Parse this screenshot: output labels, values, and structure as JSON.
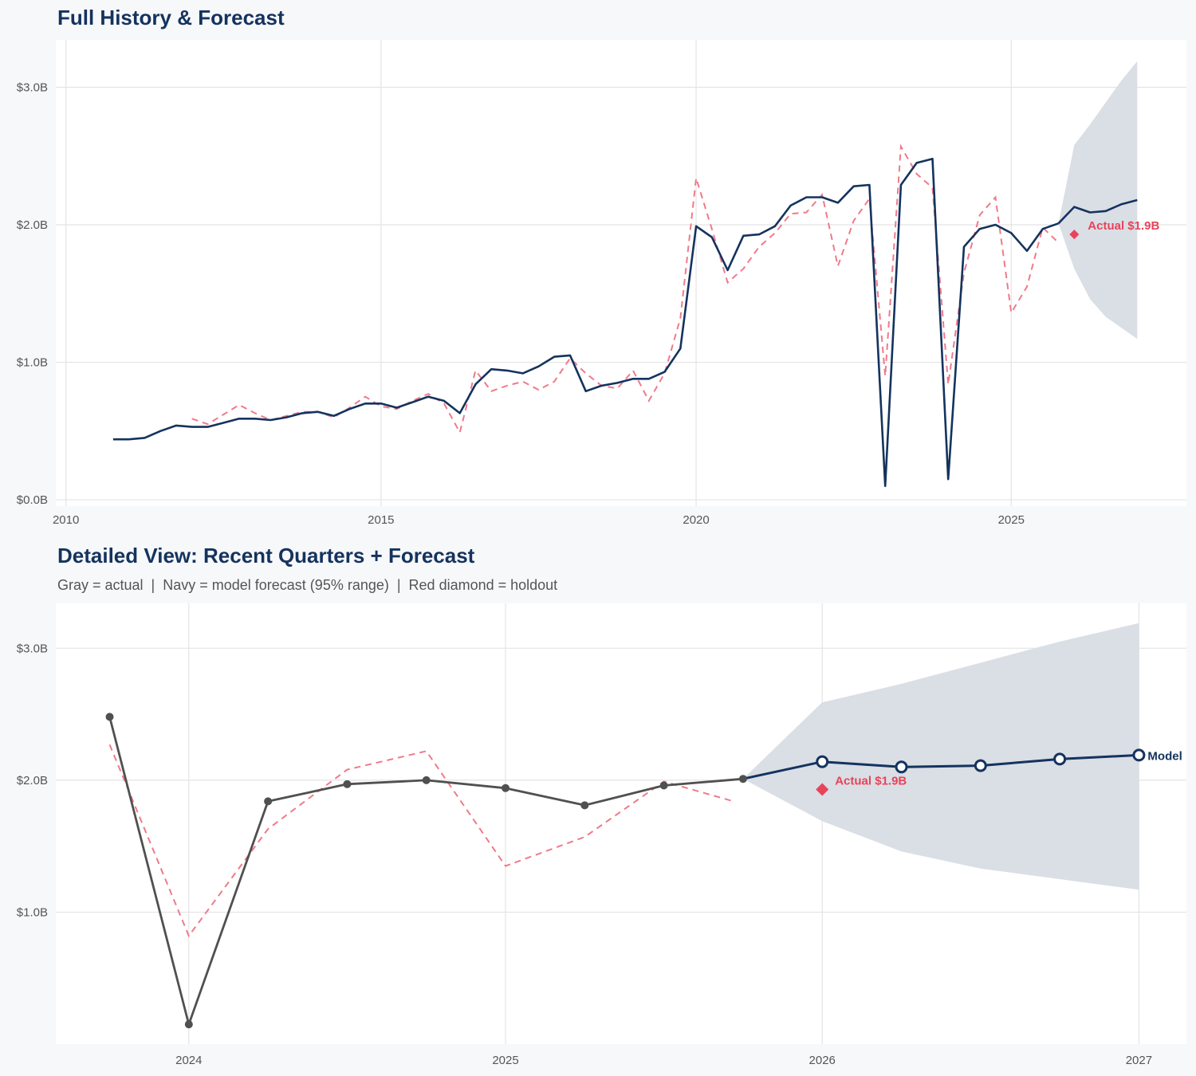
{
  "colors": {
    "background": "#f7f8fa",
    "navy": "#14335e",
    "actual_gray": "#505050",
    "dashed_red": "#f07a8a",
    "holdout_red": "#e8435a",
    "band": "#dadee5",
    "grid": "#e4e4e4"
  },
  "chart_data": [
    {
      "type": "line",
      "title": "Full History & Forecast",
      "xlim": [
        2009.84,
        2027.78
      ],
      "ylim": [
        -0.046,
        3.345
      ],
      "x_ticks": [
        2010,
        2015,
        2020,
        2025
      ],
      "x_tick_labels": [
        "2010",
        "2015",
        "2020",
        "2025"
      ],
      "y_ticks": [
        0,
        1,
        2,
        3
      ],
      "y_tick_labels": [
        "$0.0B",
        "$1.0B",
        "$2.0B",
        "$3.0B"
      ],
      "grid": true,
      "x_start": 2010.75,
      "x_step": 0.25,
      "actual": [
        0.44,
        0.44,
        0.45,
        0.5,
        0.54,
        0.53,
        0.53,
        0.56,
        0.59,
        0.59,
        0.58,
        0.6,
        0.63,
        0.64,
        0.61,
        0.66,
        0.7,
        0.7,
        0.67,
        0.71,
        0.75,
        0.72,
        0.63,
        0.84,
        0.95,
        0.94,
        0.92,
        0.97,
        1.04,
        1.05,
        0.79,
        0.83,
        0.85,
        0.88,
        0.88,
        0.93,
        1.1,
        1.99,
        1.91,
        1.67,
        1.92,
        1.93,
        1.99,
        2.14,
        2.2,
        2.2,
        2.16,
        2.28,
        2.29,
        0.1,
        2.29,
        2.45,
        2.48,
        0.15,
        1.84,
        1.97,
        2.0,
        1.94,
        1.81,
        1.97,
        2.01
      ],
      "fitted_x_start": 2012.0,
      "fitted": [
        0.59,
        0.55,
        0.62,
        0.69,
        0.63,
        0.58,
        0.61,
        0.64,
        0.64,
        0.6,
        0.67,
        0.75,
        0.68,
        0.66,
        0.72,
        0.77,
        0.7,
        0.49,
        0.94,
        0.79,
        0.83,
        0.86,
        0.8,
        0.86,
        1.03,
        0.92,
        0.83,
        0.81,
        0.94,
        0.72,
        0.92,
        1.32,
        2.34,
        1.97,
        1.58,
        1.68,
        1.84,
        1.94,
        2.08,
        2.09,
        2.22,
        1.7,
        2.03,
        2.19,
        0.9,
        2.57,
        2.37,
        2.27,
        0.84,
        1.65,
        2.07,
        2.2,
        1.36,
        1.55,
        1.98,
        1.87
      ],
      "forecast": {
        "x": [
          2025.75,
          2026.0,
          2026.25,
          2026.5,
          2026.75,
          2027.0
        ],
        "y": [
          2.01,
          2.13,
          2.09,
          2.1,
          2.15,
          2.18
        ]
      },
      "band": {
        "x": [
          2025.75,
          2026.0,
          2026.25,
          2026.5,
          2026.75,
          2027.0
        ],
        "lower": [
          2.01,
          1.68,
          1.46,
          1.33,
          1.25,
          1.17
        ],
        "upper": [
          2.01,
          2.58,
          2.73,
          2.89,
          3.05,
          3.19
        ]
      },
      "holdout": {
        "x": 2026.0,
        "y": 1.93,
        "label": "Actual $1.9B"
      }
    },
    {
      "type": "line",
      "title": "Detailed View: Recent Quarters + Forecast",
      "subtitle": "Gray = actual  |  Navy = model forecast (95% range)  |  Red diamond = holdout",
      "xlim": [
        2023.58,
        2027.15
      ],
      "ylim": [
        0.0,
        3.34
      ],
      "x_ticks": [
        2024,
        2025,
        2026,
        2027
      ],
      "x_tick_labels": [
        "2024",
        "2025",
        "2026",
        "2027"
      ],
      "y_ticks": [
        1,
        2,
        3
      ],
      "y_tick_labels": [
        "$1.0B",
        "$2.0B",
        "$3.0B"
      ],
      "grid": true,
      "actual": {
        "x": [
          2023.75,
          2024.0,
          2024.25,
          2024.5,
          2024.75,
          2025.0,
          2025.25,
          2025.5,
          2025.75
        ],
        "y": [
          2.48,
          0.15,
          1.84,
          1.97,
          2.0,
          1.94,
          1.81,
          1.96,
          2.01
        ]
      },
      "fitted": {
        "x": [
          2023.75,
          2024.0,
          2024.25,
          2024.5,
          2024.75,
          2025.0,
          2025.25,
          2025.5,
          2025.72
        ],
        "y": [
          2.27,
          0.82,
          1.63,
          2.08,
          2.22,
          1.35,
          1.57,
          1.99,
          1.84
        ]
      },
      "forecast": {
        "x": [
          2025.75,
          2026.0,
          2026.25,
          2026.5,
          2026.75,
          2027.0
        ],
        "y": [
          2.01,
          2.14,
          2.1,
          2.11,
          2.16,
          2.19
        ],
        "label": "Model"
      },
      "band": {
        "x": [
          2025.75,
          2026.0,
          2026.25,
          2026.5,
          2026.75,
          2027.0
        ],
        "lower": [
          2.01,
          1.69,
          1.46,
          1.33,
          1.25,
          1.17
        ],
        "upper": [
          2.01,
          2.59,
          2.73,
          2.89,
          3.05,
          3.19
        ]
      },
      "holdout": {
        "x": 2026.0,
        "y": 1.93,
        "label": "Actual $1.9B"
      }
    }
  ]
}
